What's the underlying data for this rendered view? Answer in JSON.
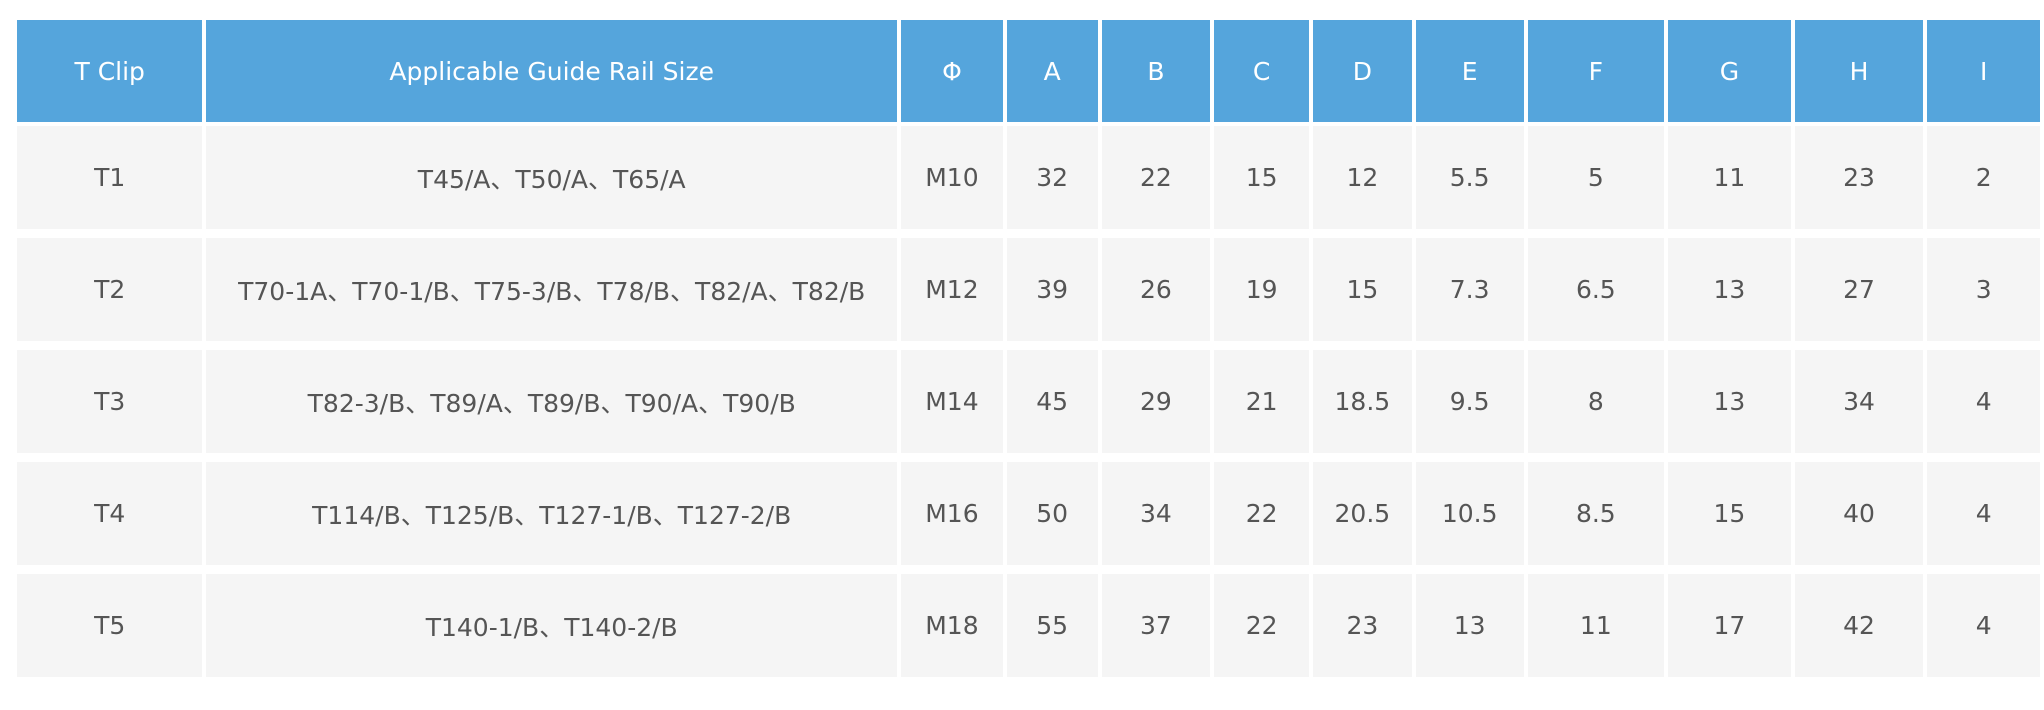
{
  "table": {
    "header": [
      "T Clip",
      "Applicable Guide Rail Size",
      "Φ",
      "A",
      "B",
      "C",
      "D",
      "E",
      "F",
      "G",
      "H",
      "I"
    ],
    "rows": [
      [
        "T1",
        "T45/A、T50/A、T65/A",
        "M10",
        "32",
        "22",
        "15",
        "12",
        "5.5",
        "5",
        "11",
        "23",
        "2"
      ],
      [
        "T2",
        "T70-1A、T70-1/B、T75-3/B、T78/B、T82/A、T82/B",
        "M12",
        "39",
        "26",
        "19",
        "15",
        "7.3",
        "6.5",
        "13",
        "27",
        "3"
      ],
      [
        "T3",
        "T82-3/B、T89/A、T89/B、T90/A、T90/B",
        "M14",
        "45",
        "29",
        "21",
        "18.5",
        "9.5",
        "8",
        "13",
        "34",
        "4"
      ],
      [
        "T4",
        "T114/B、T125/B、T127-1/B、T127-2/B",
        "M16",
        "50",
        "34",
        "22",
        "20.5",
        "10.5",
        "8.5",
        "15",
        "40",
        "4"
      ],
      [
        "T5",
        "T140-1/B、T140-2/B",
        "M18",
        "55",
        "37",
        "22",
        "23",
        "13",
        "11",
        "17",
        "42",
        "4"
      ]
    ]
  }
}
